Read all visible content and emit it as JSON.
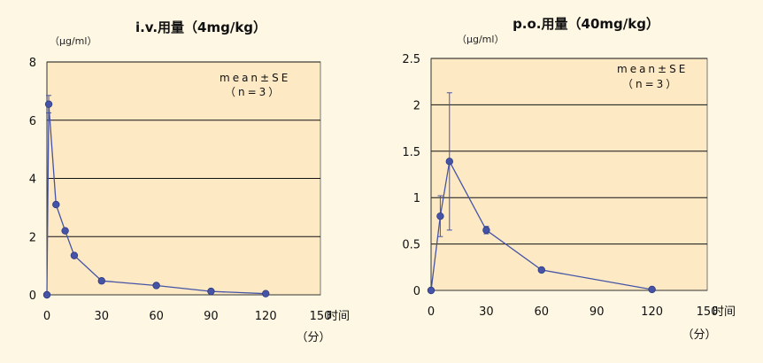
{
  "colors": {
    "background": "#fdf7e3",
    "plot_area": "#fde9c4",
    "series": "#4554a6",
    "grid": "#111111"
  },
  "chart_data": [
    {
      "type": "line",
      "title": "i.v.用量（4mg/kg）",
      "ylabel": "（μg/ml）",
      "xlabel": "时间",
      "xunit": "（分）",
      "xlim": [
        0,
        150
      ],
      "ylim": [
        0,
        8
      ],
      "xticks": [
        "0",
        "30",
        "60",
        "90",
        "120",
        "150"
      ],
      "yticks": [
        "0",
        "2",
        "4",
        "6",
        "8"
      ],
      "annotation": [
        "mean±SE",
        "（n=3）"
      ],
      "grid": true,
      "x": [
        0,
        1,
        5,
        10,
        15,
        30,
        60,
        90,
        120
      ],
      "y": [
        0,
        6.55,
        3.1,
        2.2,
        1.35,
        0.48,
        0.32,
        0.12,
        0.04
      ],
      "error": [
        0,
        0.3,
        0.05,
        0.05,
        0.05,
        0.04,
        0.03,
        0.02,
        0.01
      ]
    },
    {
      "type": "line",
      "title": "p.o.用量（40mg/kg）",
      "ylabel": "（μg/ml）",
      "xlabel": "时间",
      "xunit": "（分）",
      "xlim": [
        0,
        150
      ],
      "ylim": [
        0,
        2.5
      ],
      "xticks": [
        "0",
        "30",
        "60",
        "90",
        "120",
        "150"
      ],
      "yticks": [
        "0",
        "0.5",
        "1",
        "1.5",
        "2",
        "2.5"
      ],
      "annotation": [
        "mean±SE",
        "（n=3）"
      ],
      "grid": true,
      "x": [
        0,
        5,
        10,
        30,
        60,
        120
      ],
      "y": [
        0,
        0.8,
        1.39,
        0.65,
        0.22,
        0.01
      ],
      "error": [
        0,
        0.22,
        0.74,
        0.04,
        0.02,
        0.01
      ]
    }
  ]
}
